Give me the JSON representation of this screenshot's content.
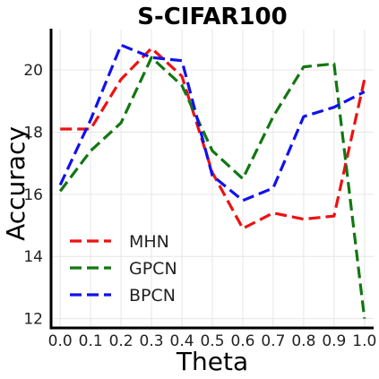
{
  "chart_data": {
    "type": "line",
    "title": "S-CIFAR100",
    "xlabel": "Theta",
    "ylabel": "Accuracy",
    "x": [
      0.0,
      0.1,
      0.2,
      0.3,
      0.4,
      0.5,
      0.6,
      0.7,
      0.8,
      0.9,
      1.0
    ],
    "x_tick_labels": [
      "0.0",
      "0.1",
      "0.2",
      "0.3",
      "0.4",
      "0.5",
      "0.6",
      "0.7",
      "0.8",
      "0.9",
      "1.0"
    ],
    "y_ticks": [
      12,
      14,
      16,
      18,
      20
    ],
    "y_tick_labels": [
      "12",
      "14",
      "16",
      "18",
      "20"
    ],
    "xlim": [
      -0.03,
      1.03
    ],
    "ylim": [
      11.7,
      21.3
    ],
    "grid": true,
    "line_style": "dashed",
    "legend_position": "lower-left",
    "series": [
      {
        "name": "MHN",
        "color": "#ee1111",
        "values": [
          18.1,
          18.1,
          19.7,
          20.7,
          19.8,
          16.7,
          14.9,
          15.4,
          15.2,
          15.3,
          19.7
        ]
      },
      {
        "name": "GPCN",
        "color": "#117711",
        "values": [
          16.1,
          17.4,
          18.3,
          20.4,
          19.5,
          17.4,
          16.5,
          18.5,
          20.1,
          20.2,
          12.0
        ]
      },
      {
        "name": "BPCN",
        "color": "#1111ee",
        "values": [
          16.3,
          18.4,
          20.8,
          20.4,
          20.3,
          16.6,
          15.8,
          16.2,
          18.5,
          18.8,
          19.3
        ]
      }
    ]
  }
}
